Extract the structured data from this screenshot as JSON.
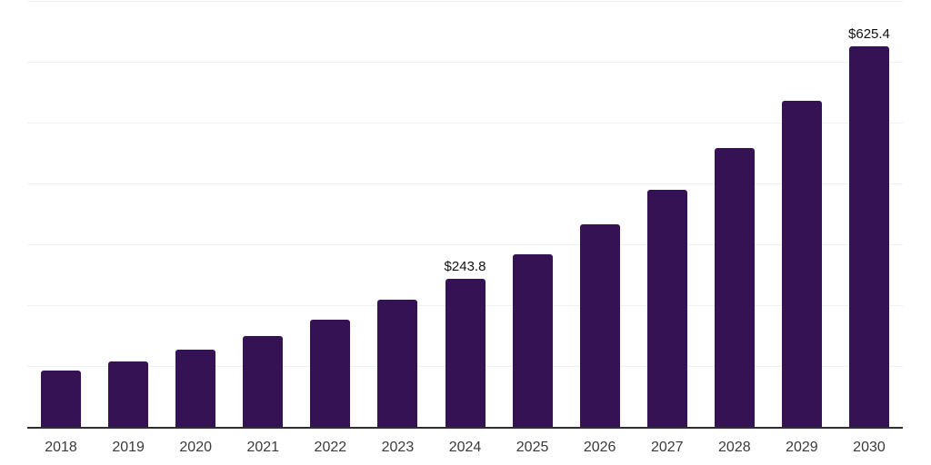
{
  "chart_data": {
    "type": "bar",
    "title": "",
    "xlabel": "",
    "ylabel": "",
    "categories": [
      "2018",
      "2019",
      "2020",
      "2021",
      "2022",
      "2023",
      "2024",
      "2025",
      "2026",
      "2027",
      "2028",
      "2029",
      "2030"
    ],
    "values": [
      93.3,
      108.2,
      127.6,
      149.3,
      176.4,
      209.3,
      243.8,
      284.3,
      333.1,
      390.3,
      457.5,
      535.1,
      625.4
    ],
    "data_labels": {
      "2024": "$243.8",
      "2030": "$625.4"
    },
    "ylim": [
      0,
      700
    ],
    "gridline_interval": 100,
    "grid": "horizontal-only",
    "legend": "none",
    "y_tick_labels_visible": false,
    "colors": {
      "bar": "#351253",
      "background": "#ffffff",
      "gridline": "#f0f0f0",
      "axis_line": "#2e2e2e",
      "tick_label": "#3a3a3a",
      "data_label": "#111111"
    }
  }
}
